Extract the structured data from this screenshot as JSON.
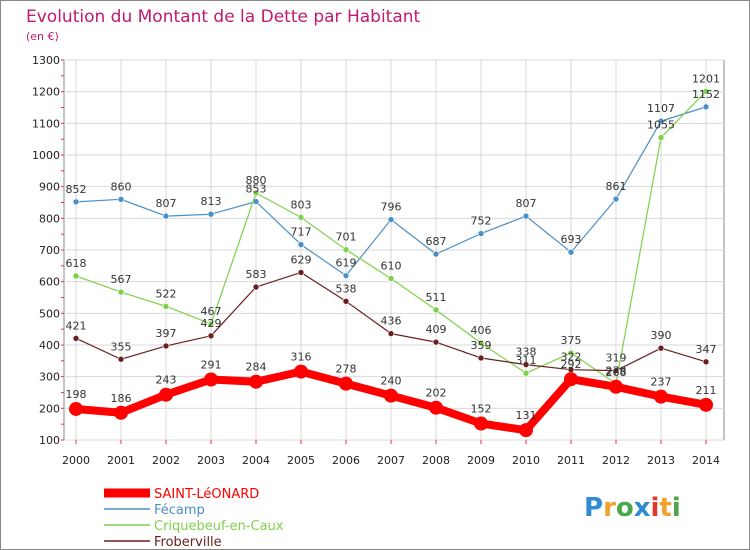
{
  "chart_data": {
    "type": "line",
    "title": "Evolution du Montant de la Dette par Habitant",
    "subtitle": "(en €)",
    "xlabel": "",
    "ylabel": "",
    "x": [
      "2000",
      "2001",
      "2002",
      "2003",
      "2004",
      "2005",
      "2006",
      "2007",
      "2008",
      "2009",
      "2010",
      "2011",
      "2012",
      "2013",
      "2014"
    ],
    "ylim": [
      100,
      1300
    ],
    "yticks": [
      "100",
      "200",
      "300",
      "400",
      "500",
      "600",
      "700",
      "800",
      "900",
      "1000",
      "1100",
      "1200",
      "1300"
    ],
    "grid": true,
    "legend_position": "bottom-left",
    "series": [
      {
        "name": "SAINT-LéONARD",
        "color": "#ff0000",
        "emphasis": true,
        "values": [
          198,
          186,
          243,
          291,
          284,
          316,
          278,
          240,
          202,
          152,
          131,
          292,
          268,
          237,
          211
        ],
        "labels": [
          "198",
          "186",
          "243",
          "291",
          "284",
          "316",
          "278",
          "240",
          "202",
          "152",
          "131",
          "292",
          "268",
          "237",
          "211"
        ]
      },
      {
        "name": "Fécamp",
        "color": "#4a90c8",
        "emphasis": false,
        "values": [
          852,
          860,
          807,
          813,
          853,
          717,
          619,
          796,
          687,
          752,
          807,
          693,
          861,
          1107,
          1152
        ],
        "labels": [
          "852",
          "860",
          "807",
          "813",
          "853",
          "717",
          "619",
          "796",
          "687",
          "752",
          "807",
          "693",
          "861",
          "1107",
          "1152"
        ]
      },
      {
        "name": "Criquebeuf-en-Caux",
        "color": "#7ed14a",
        "emphasis": false,
        "values": [
          618,
          567,
          522,
          467,
          880,
          803,
          701,
          610,
          511,
          406,
          311,
          375,
          278,
          1055,
          1201
        ],
        "labels": [
          "618",
          "567",
          "522",
          "467",
          "880",
          "803",
          "701",
          "610",
          "511",
          "406",
          "311",
          "375",
          "278",
          "1055",
          "1201"
        ]
      },
      {
        "name": "Froberville",
        "color": "#6b1e1e",
        "emphasis": false,
        "values": [
          421,
          355,
          397,
          429,
          583,
          629,
          538,
          436,
          409,
          359,
          338,
          322,
          319,
          390,
          347
        ],
        "labels": [
          "421",
          "355",
          "397",
          "429",
          "583",
          "629",
          "538",
          "436",
          "409",
          "359",
          "338",
          "322",
          "319",
          "390",
          "347"
        ]
      }
    ]
  },
  "colors": {
    "title": "#c3196c",
    "grid": "#d9d9d9",
    "frame": "#888888"
  },
  "logo": {
    "text": "Proxiti",
    "letters": [
      "P",
      "r",
      "o",
      "x",
      "i",
      "t",
      "i"
    ],
    "letter_colors": [
      "#2f8bd4",
      "#f0a22c",
      "#4aa84a",
      "#2f8bd4",
      "#e2362e",
      "#f0a22c",
      "#4aa84a"
    ]
  }
}
